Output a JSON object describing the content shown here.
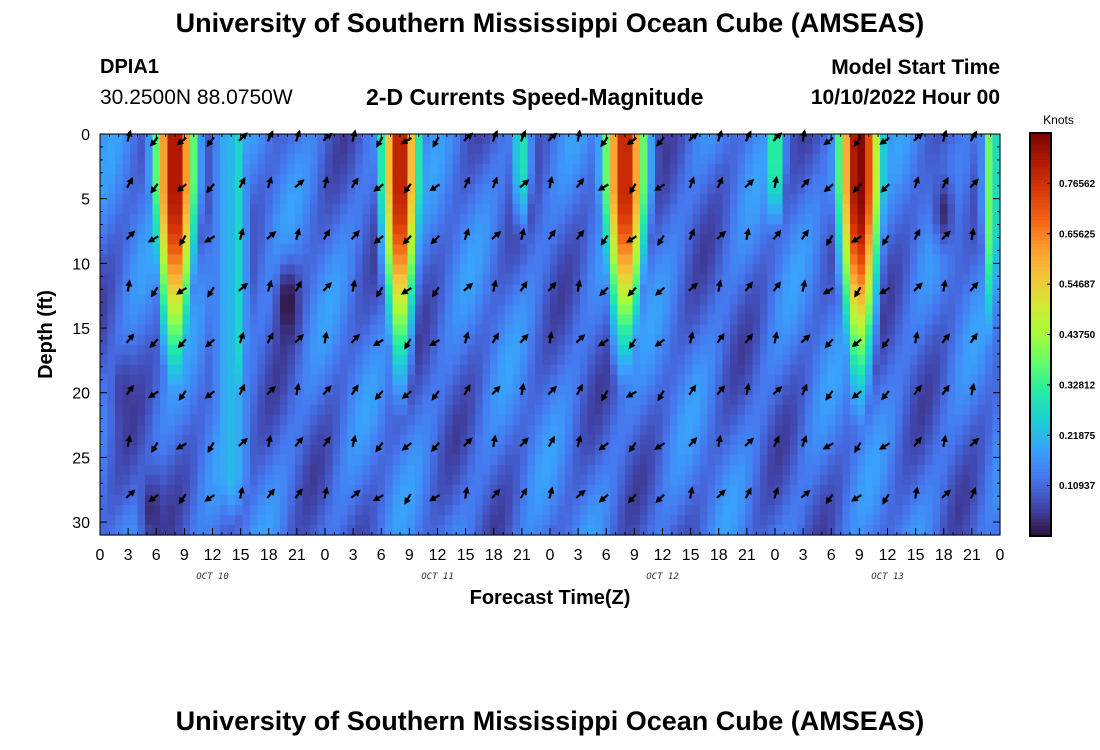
{
  "header": {
    "title": "University of Southern Mississippi Ocean Cube (AMSEAS)",
    "station_id": "DPIA1",
    "station_coords": "30.2500N  88.0750W",
    "subtitle": "2-D Currents Speed-Magnitude",
    "model_start_label": "Model Start Time",
    "model_start_value": "10/10/2022 Hour 00"
  },
  "footer": {
    "title": "University of Southern Mississippi Ocean Cube (AMSEAS)"
  },
  "chart_data": {
    "type": "heatmap",
    "title": "2-D Currents Speed-Magnitude",
    "xlabel": "Forecast Time(Z)",
    "ylabel": "Depth (ft)",
    "x_range_hours": [
      0,
      96
    ],
    "y_range_ft": [
      0,
      31
    ],
    "y_ticks": [
      0,
      5,
      10,
      15,
      20,
      25,
      30
    ],
    "x_ticks": [
      {
        "hour": 0,
        "label": "0"
      },
      {
        "hour": 3,
        "label": "3"
      },
      {
        "hour": 6,
        "label": "6"
      },
      {
        "hour": 9,
        "label": "9"
      },
      {
        "hour": 12,
        "label": "12"
      },
      {
        "hour": 15,
        "label": "15"
      },
      {
        "hour": 18,
        "label": "18"
      },
      {
        "hour": 21,
        "label": "21"
      },
      {
        "hour": 24,
        "label": "0"
      },
      {
        "hour": 27,
        "label": "3"
      },
      {
        "hour": 30,
        "label": "6"
      },
      {
        "hour": 33,
        "label": "9"
      },
      {
        "hour": 36,
        "label": "12"
      },
      {
        "hour": 39,
        "label": "15"
      },
      {
        "hour": 42,
        "label": "18"
      },
      {
        "hour": 45,
        "label": "21"
      },
      {
        "hour": 48,
        "label": "0"
      },
      {
        "hour": 51,
        "label": "3"
      },
      {
        "hour": 54,
        "label": "6"
      },
      {
        "hour": 57,
        "label": "9"
      },
      {
        "hour": 60,
        "label": "12"
      },
      {
        "hour": 63,
        "label": "15"
      },
      {
        "hour": 66,
        "label": "18"
      },
      {
        "hour": 69,
        "label": "21"
      },
      {
        "hour": 72,
        "label": "0"
      },
      {
        "hour": 75,
        "label": "3"
      },
      {
        "hour": 78,
        "label": "6"
      },
      {
        "hour": 81,
        "label": "9"
      },
      {
        "hour": 84,
        "label": "12"
      },
      {
        "hour": 87,
        "label": "15"
      },
      {
        "hour": 90,
        "label": "18"
      },
      {
        "hour": 93,
        "label": "21"
      },
      {
        "hour": 96,
        "label": "0"
      }
    ],
    "day_labels": [
      {
        "hour": 12,
        "label": "OCT 10"
      },
      {
        "hour": 36,
        "label": "OCT 11"
      },
      {
        "hour": 60,
        "label": "OCT 12"
      },
      {
        "hour": 84,
        "label": "OCT 13"
      }
    ],
    "colorbar": {
      "label": "Knots",
      "min": 0,
      "max": 0.875,
      "ticks": [
        "0.76562",
        "0.65625",
        "0.54687",
        "0.43750",
        "0.32812",
        "0.21875",
        "0.10937"
      ],
      "tick_values": [
        0.765625,
        0.65625,
        0.546875,
        0.4375,
        0.328125,
        0.21875,
        0.109375
      ]
    },
    "speed_peaks_knots": [
      {
        "hour": 8,
        "depth_ft": 4,
        "speed": 0.84,
        "hour_width": 2.2,
        "depth_width": 13
      },
      {
        "hour": 32,
        "depth_ft": 4,
        "speed": 0.82,
        "hour_width": 2.0,
        "depth_width": 13
      },
      {
        "hour": 56,
        "depth_ft": 4,
        "speed": 0.8,
        "hour_width": 2.3,
        "depth_width": 12
      },
      {
        "hour": 81,
        "depth_ft": 4,
        "speed": 0.87,
        "hour_width": 2.3,
        "depth_width": 14
      },
      {
        "hour": 45,
        "depth_ft": 2,
        "speed": 0.3,
        "hour_width": 1.2,
        "depth_width": 6
      },
      {
        "hour": 72,
        "depth_ft": 2,
        "speed": 0.35,
        "hour_width": 1.2,
        "depth_width": 6
      },
      {
        "hour": 95,
        "depth_ft": 6,
        "speed": 0.4,
        "hour_width": 1.0,
        "depth_width": 11
      },
      {
        "hour": 15,
        "depth_ft": 16,
        "speed": 0.28,
        "hour_width": 0.8,
        "depth_width": 8
      },
      {
        "hour": 14,
        "depth_ft": 26,
        "speed": 0.22,
        "hour_width": 2.5,
        "depth_width": 5
      }
    ],
    "speed_minima_knots": [
      {
        "hour": 20,
        "depth_ft": 13,
        "speed": 0.0
      },
      {
        "hour": 5.5,
        "depth_ft": 29,
        "speed": 0.03
      },
      {
        "hour": 2.5,
        "depth_ft": 20,
        "speed": 0.05
      },
      {
        "hour": 90,
        "depth_ft": 6,
        "speed": 0.03
      }
    ],
    "arrow_grid": {
      "depths_ft": [
        0,
        4,
        8,
        12,
        16,
        20,
        24,
        28
      ],
      "hour_step": 3,
      "direction_rule": "southwest (outgoing) during speed peaks, northward/northeast between peaks"
    }
  },
  "colors": {
    "colormap": [
      "#30123b",
      "#4145ab",
      "#4675ed",
      "#39a2fc",
      "#1bcfd4",
      "#24eca6",
      "#61fc6c",
      "#a4fc3b",
      "#d1e834",
      "#f3c63a",
      "#fe9b2d",
      "#f36315",
      "#d93806",
      "#b11901",
      "#7a0402"
    ]
  }
}
